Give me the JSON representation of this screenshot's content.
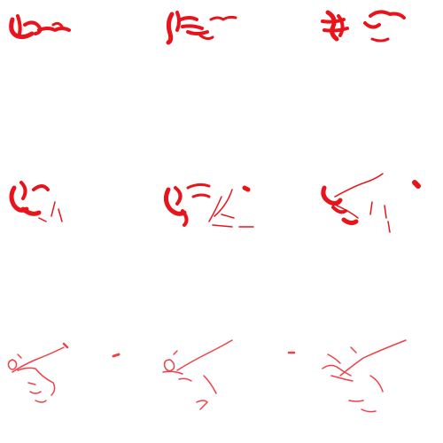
{
  "grid": {
    "rows": 3,
    "cols": 3
  },
  "colors": {
    "background": "#ffffff",
    "stroke": "#e8141c",
    "stroke_faded": "#f04048"
  },
  "panels": [
    {
      "id": "r1c1",
      "style": "heavy"
    },
    {
      "id": "r1c2",
      "style": "heavy"
    },
    {
      "id": "r1c3",
      "style": "heavy"
    },
    {
      "id": "r2c1",
      "style": "heavy-fragmented"
    },
    {
      "id": "r2c2",
      "style": "heavy-fragmented"
    },
    {
      "id": "r2c3",
      "style": "mixed"
    },
    {
      "id": "r3c1",
      "style": "thin"
    },
    {
      "id": "r3c2",
      "style": "thin"
    },
    {
      "id": "r3c3",
      "style": "thin"
    }
  ]
}
